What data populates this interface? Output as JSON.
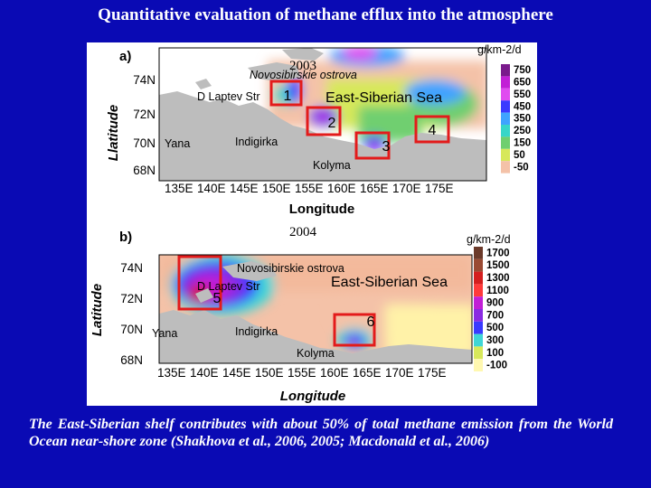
{
  "title": "Quantitative evaluation of methane efflux into the atmosphere",
  "caption": "The East-Siberian shelf contributes with about 50% of total methane emission from the World Ocean near-shore zone (Shakhova et al., 2006, 2005; Macdonald et al., 2006)",
  "colors": {
    "background": "#0a0ab4",
    "land": "#bdbdbd",
    "box": "#e31b1b"
  },
  "panels": [
    {
      "label": "a)",
      "year": "2003",
      "unit": "g/km-2/d",
      "ylabel": "Llatitude",
      "xlabel": "Longitude",
      "lat_ticks": [
        "74N",
        "72N",
        "70N",
        "68N"
      ],
      "lon_ticks": [
        "135E",
        "140E",
        "145E",
        "150E",
        "155E",
        "160E",
        "165E",
        "170E",
        "175E"
      ],
      "places": [
        "Novosibirskie ostrova",
        "D Laptev Str",
        "East-Siberian Sea",
        "Yana",
        "Indigirka",
        "Kolyma"
      ],
      "boxes": [
        "1",
        "2",
        "3",
        "4"
      ],
      "legend": [
        {
          "value": "750",
          "color": "#7a1a8c"
        },
        {
          "value": "650",
          "color": "#c21fd6"
        },
        {
          "value": "550",
          "color": "#e04bf0"
        },
        {
          "value": "450",
          "color": "#3a3aff"
        },
        {
          "value": "350",
          "color": "#3fa3ff"
        },
        {
          "value": "250",
          "color": "#37d6c8"
        },
        {
          "value": "150",
          "color": "#6fcf6f"
        },
        {
          "value": "50",
          "color": "#d7e85a"
        },
        {
          "value": "-50",
          "color": "#f4c2a8"
        }
      ]
    },
    {
      "label": "b)",
      "year": "2004",
      "unit": "g/km-2/d",
      "ylabel": "Latitude",
      "xlabel": "Longitude",
      "lat_ticks": [
        "74N",
        "72N",
        "70N",
        "68N"
      ],
      "lon_ticks": [
        "135E",
        "140E",
        "145E",
        "150E",
        "155E",
        "160E",
        "165E",
        "170E",
        "175E"
      ],
      "places": [
        "Novosibirskie ostrova",
        "D Laptev Str",
        "East-Siberian Sea",
        "Yana",
        "Indigirka",
        "Kolyma"
      ],
      "boxes": [
        "5",
        "6"
      ],
      "legend": [
        {
          "value": "1700",
          "color": "#6b3a2a"
        },
        {
          "value": "1500",
          "color": "#9a4a33"
        },
        {
          "value": "1300",
          "color": "#d41f1f"
        },
        {
          "value": "1100",
          "color": "#ff3b3b"
        },
        {
          "value": "900",
          "color": "#c21fd6"
        },
        {
          "value": "700",
          "color": "#8a2be2"
        },
        {
          "value": "500",
          "color": "#3a3aff"
        },
        {
          "value": "300",
          "color": "#3fd6d6"
        },
        {
          "value": "100",
          "color": "#d7e85a"
        },
        {
          "value": "-100",
          "color": "#fff8b0"
        }
      ]
    }
  ]
}
